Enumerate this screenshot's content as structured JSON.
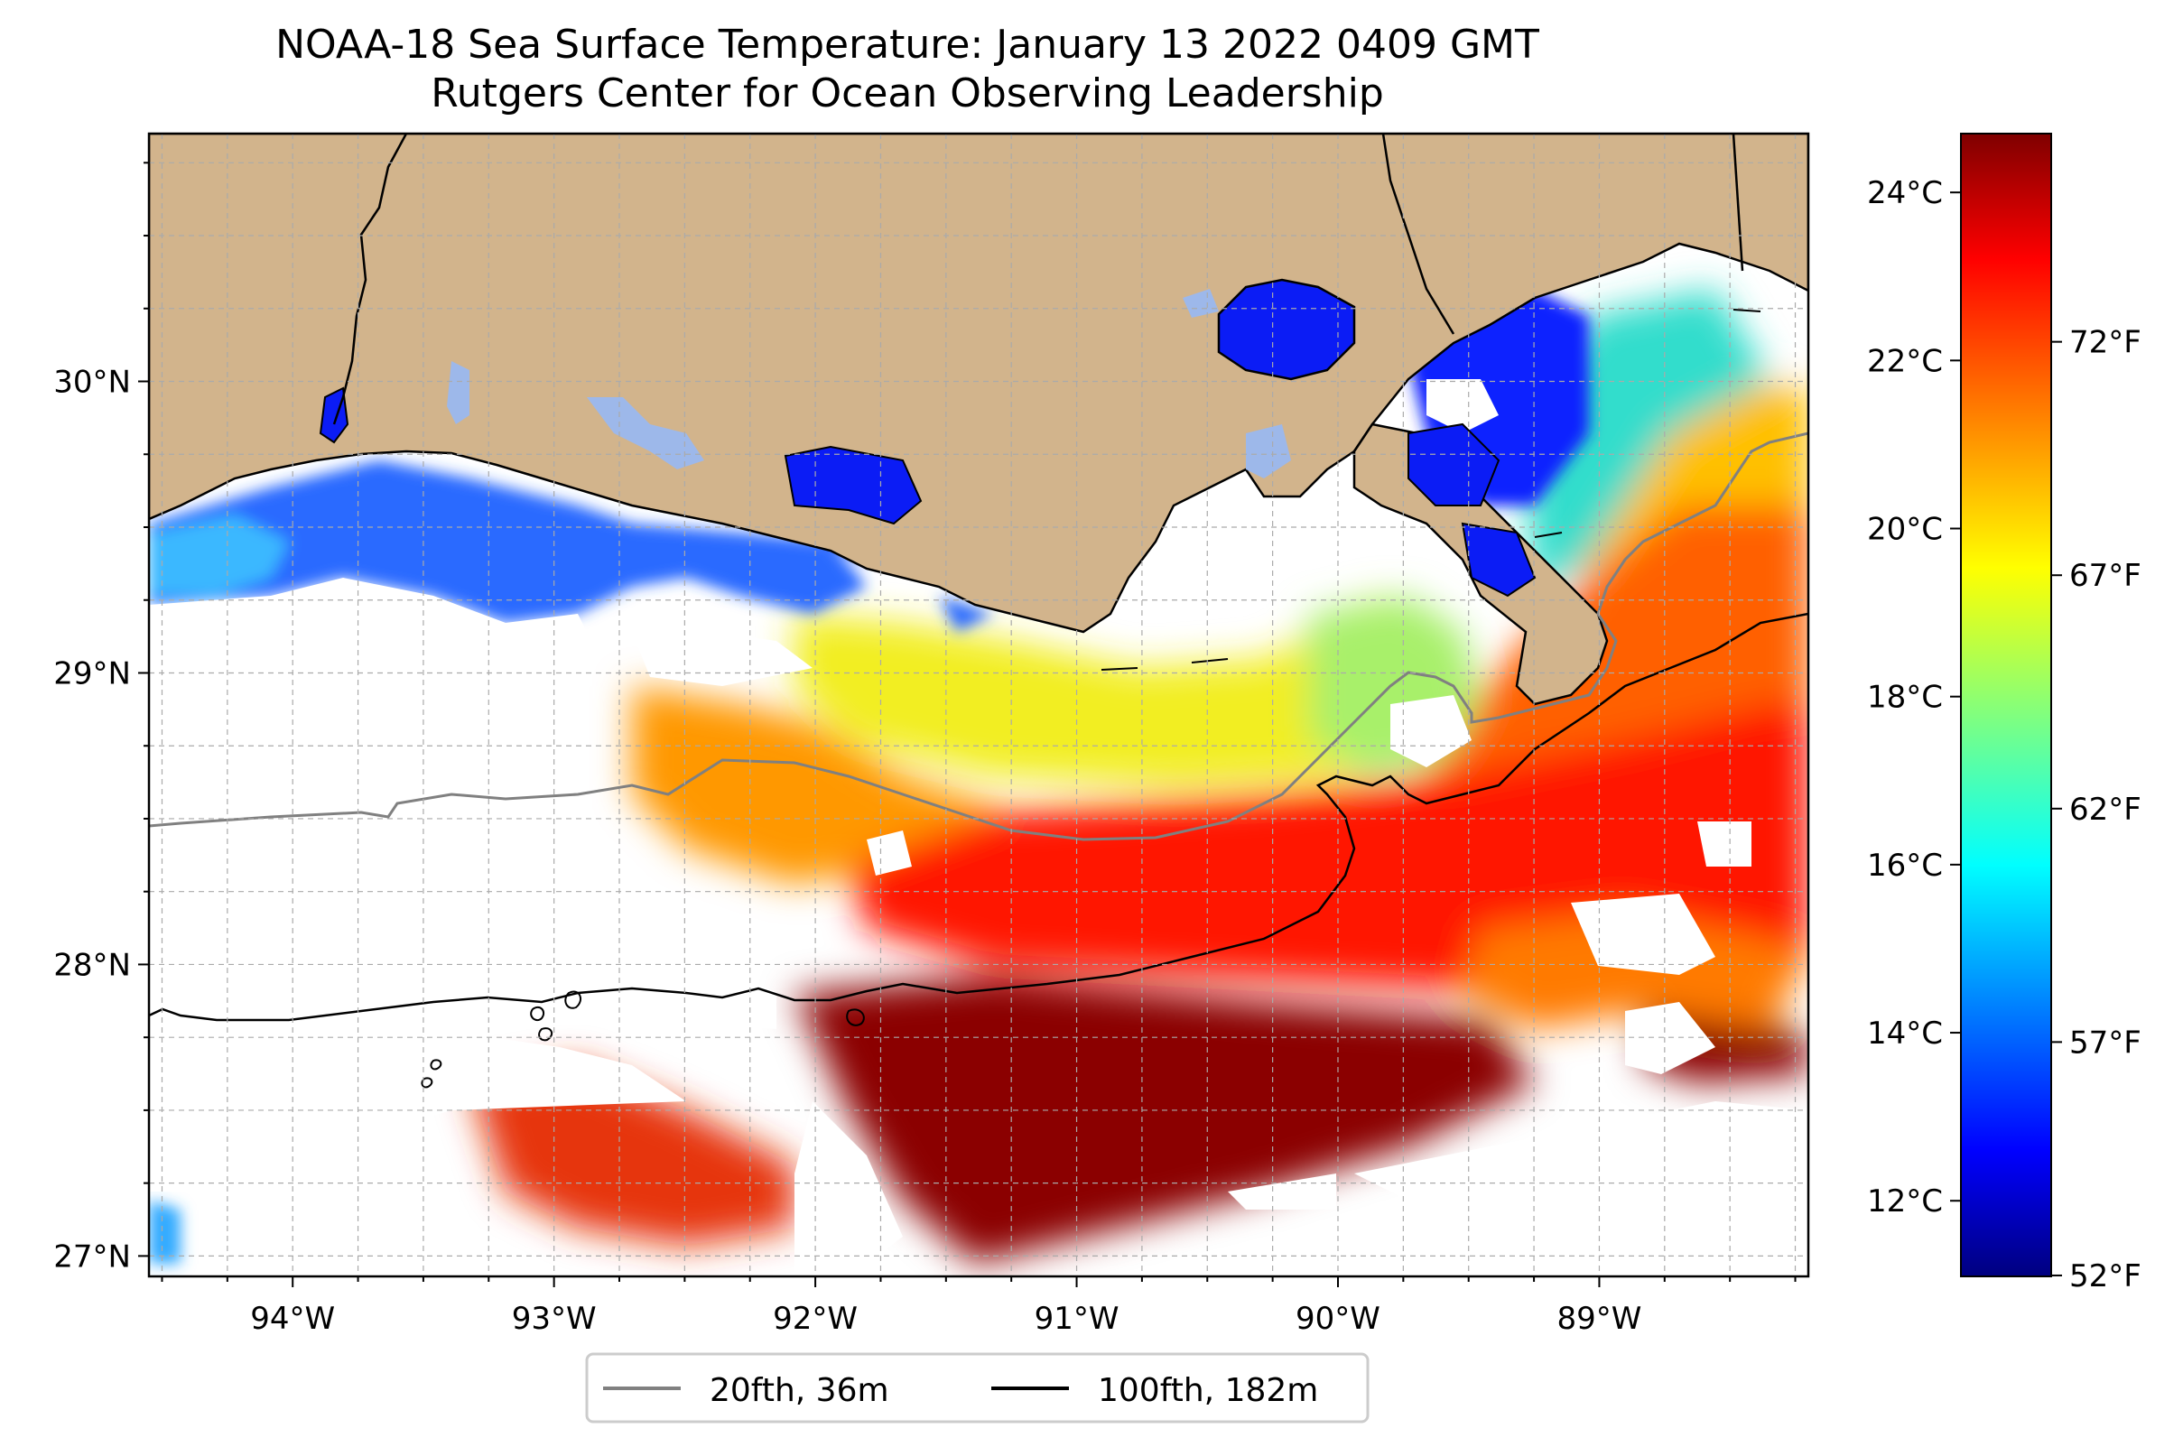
{
  "title": "NOAA-18 Sea Surface Temperature: January 13 2022 0409 GMT",
  "subtitle": "Rutgers Center for Ocean Observing Leadership",
  "map": {
    "lon_range": [
      -94.55,
      -88.2
    ],
    "lat_range": [
      26.93,
      30.85
    ],
    "lon_ticks": [
      {
        "value": -94,
        "label": "94°W"
      },
      {
        "value": -93,
        "label": "93°W"
      },
      {
        "value": -92,
        "label": "92°W"
      },
      {
        "value": -91,
        "label": "91°W"
      },
      {
        "value": -90,
        "label": "90°W"
      },
      {
        "value": -89,
        "label": "89°W"
      }
    ],
    "lat_ticks": [
      {
        "value": 30,
        "label": "30°N"
      },
      {
        "value": 29,
        "label": "29°N"
      },
      {
        "value": 28,
        "label": "28°N"
      },
      {
        "value": 27,
        "label": "27°N"
      }
    ],
    "grid": true,
    "land_color": "#d2b48c"
  },
  "legend": {
    "placement": "bottom-center",
    "items": [
      {
        "label": "20fth, 36m",
        "color": "#808080"
      },
      {
        "label": "100fth, 182m",
        "color": "#000000"
      }
    ]
  },
  "colorbar": {
    "colormap": "jet",
    "range_c": [
      11.1,
      24.7
    ],
    "celsius_ticks": [
      {
        "value": 24,
        "label": "24°C"
      },
      {
        "value": 22,
        "label": "22°C"
      },
      {
        "value": 20,
        "label": "20°C"
      },
      {
        "value": 18,
        "label": "18°C"
      },
      {
        "value": 16,
        "label": "16°C"
      },
      {
        "value": 14,
        "label": "14°C"
      },
      {
        "value": 12,
        "label": "12°C"
      }
    ],
    "fahrenheit_ticks": [
      {
        "value": 72,
        "label": "72°F"
      },
      {
        "value": 67,
        "label": "67°F"
      },
      {
        "value": 62,
        "label": "62°F"
      },
      {
        "value": 57,
        "label": "57°F"
      },
      {
        "value": 52,
        "label": "52°F"
      }
    ]
  }
}
